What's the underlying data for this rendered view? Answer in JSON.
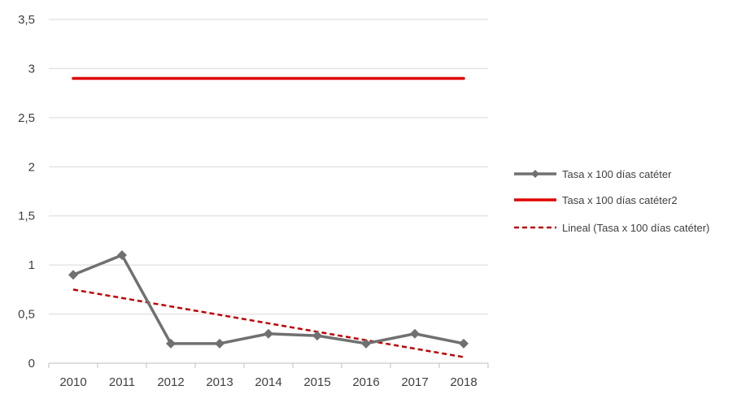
{
  "chart_data": {
    "type": "line",
    "title": "",
    "xlabel": "",
    "ylabel": "",
    "categories": [
      "2010",
      "2011",
      "2012",
      "2013",
      "2014",
      "2015",
      "2016",
      "2017",
      "2018"
    ],
    "ylim": [
      0,
      3.5
    ],
    "yticks": [
      0,
      0.5,
      1,
      1.5,
      2,
      2.5,
      3,
      3.5
    ],
    "ytick_labels": [
      "0",
      "0,5",
      "1",
      "1,5",
      "2",
      "2,5",
      "3",
      "3,5"
    ],
    "grid": "horizontal",
    "legend_position": "right",
    "series": [
      {
        "name": "Tasa x 100 días catéter",
        "values": [
          0.9,
          1.1,
          0.2,
          0.2,
          0.3,
          0.28,
          0.2,
          0.3,
          0.2
        ],
        "color": "#707070",
        "style": "solid",
        "marker": "diamond"
      },
      {
        "name": "Tasa x 100 días catéter2",
        "values": [
          2.9,
          2.9,
          2.9,
          2.9,
          2.9,
          2.9,
          2.9,
          2.9,
          2.9
        ],
        "color": "#e00000",
        "style": "solid",
        "marker": "none"
      },
      {
        "name": "Lineal (Tasa x 100 días catéter)",
        "values": [
          0.75,
          0.664,
          0.578,
          0.492,
          0.406,
          0.32,
          0.234,
          0.148,
          0.062
        ],
        "color": "#c00000",
        "style": "dashed",
        "marker": "none"
      }
    ]
  }
}
